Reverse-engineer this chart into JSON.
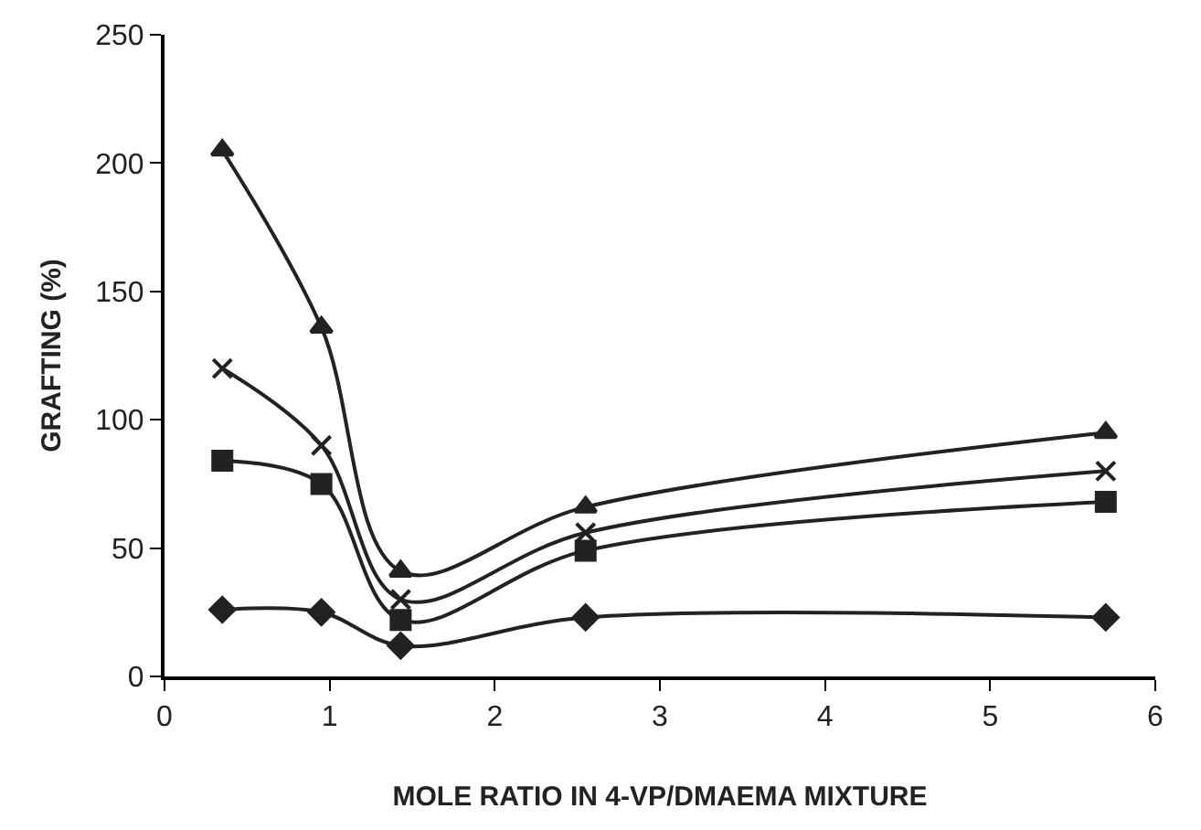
{
  "chart_data": {
    "type": "line",
    "xlabel": "MOLE RATIO IN 4-VP/DMAEMA MIXTURE",
    "ylabel": "GRAFTING (%)",
    "x": [
      0.35,
      0.95,
      1.43,
      2.55,
      5.7
    ],
    "series": [
      {
        "color": "#222222",
        "marker": "diamond",
        "values": [
          26,
          25,
          12,
          23,
          23
        ]
      },
      {
        "color": "#222222",
        "marker": "square",
        "values": [
          84,
          75,
          22,
          49,
          68
        ]
      },
      {
        "color": "#222222",
        "marker": "cross",
        "values": [
          120,
          90,
          30,
          56,
          80
        ]
      },
      {
        "color": "#222222",
        "marker": "triangle",
        "values": [
          205,
          136,
          41,
          66,
          95
        ]
      }
    ],
    "xlim": [
      0,
      6
    ],
    "xticks": [
      0,
      1,
      2,
      3,
      4,
      5,
      6
    ],
    "ylim": [
      0,
      250
    ],
    "yticks": [
      0,
      50,
      100,
      150,
      200,
      250
    ],
    "line_style": "solid"
  }
}
